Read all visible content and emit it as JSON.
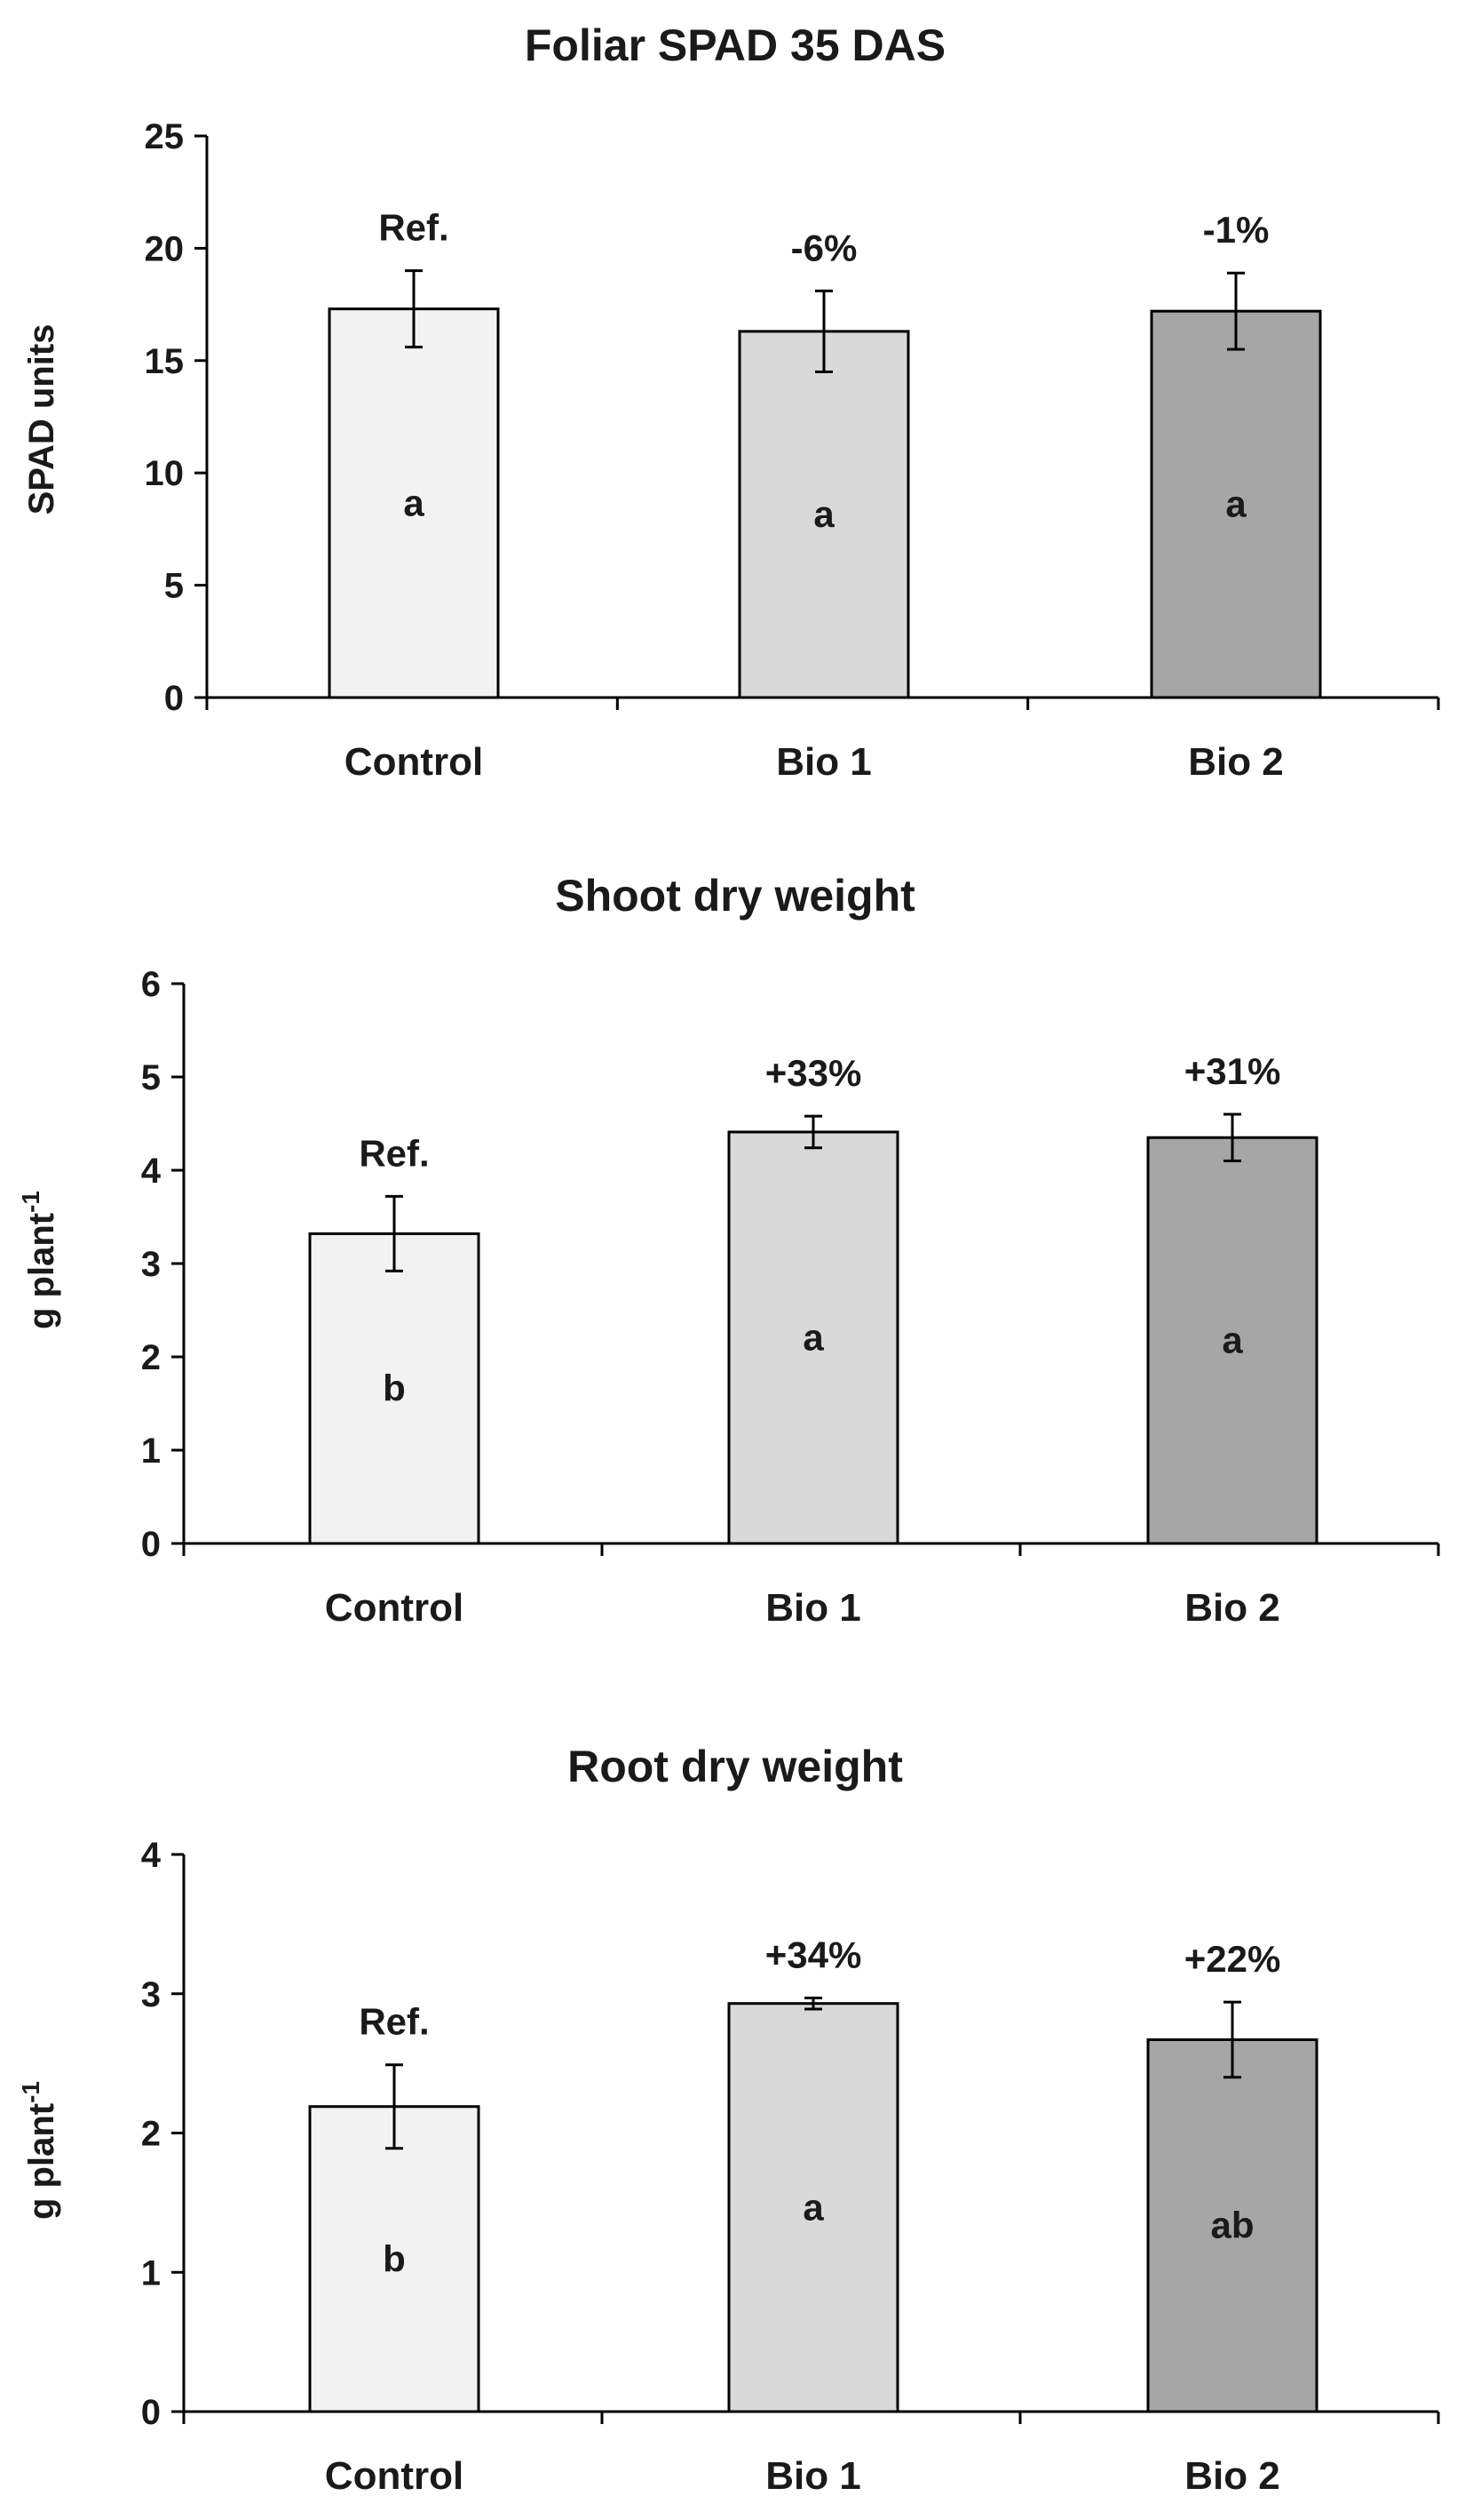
{
  "chart_data": [
    {
      "type": "bar",
      "title": "Foliar SPAD 35 DAS",
      "ylabel": "SPAD units",
      "ylabel_sup": "",
      "ylim": [
        0,
        25
      ],
      "yticks": [
        0,
        5,
        10,
        15,
        20,
        25
      ],
      "categories": [
        "Control",
        "Bio 1",
        "Bio 2"
      ],
      "values": [
        17.3,
        16.3,
        17.2
      ],
      "errors": [
        1.7,
        1.8,
        1.7
      ],
      "annotations": [
        "Ref.",
        "-6%",
        "-1%"
      ],
      "letters": [
        "a",
        "a",
        "a"
      ],
      "bar_colors": [
        "#f2f2f2",
        "#d9d9d9",
        "#a6a6a6"
      ],
      "grid": false,
      "legend": "none"
    },
    {
      "type": "bar",
      "title": "Shoot dry weight",
      "ylabel": "g plant",
      "ylabel_sup": "-1",
      "ylim": [
        0,
        6
      ],
      "yticks": [
        0,
        1,
        2,
        3,
        4,
        5,
        6
      ],
      "categories": [
        "Control",
        "Bio 1",
        "Bio 2"
      ],
      "values": [
        3.32,
        4.41,
        4.35
      ],
      "errors": [
        0.4,
        0.17,
        0.25
      ],
      "annotations": [
        "Ref.",
        "+33%",
        "+31%"
      ],
      "letters": [
        "b",
        "a",
        "a"
      ],
      "bar_colors": [
        "#f2f2f2",
        "#d9d9d9",
        "#a6a6a6"
      ],
      "grid": false,
      "legend": "none"
    },
    {
      "type": "bar",
      "title": "Root dry weight",
      "ylabel": "g plant",
      "ylabel_sup": "-1",
      "ylim": [
        0,
        4
      ],
      "yticks": [
        0,
        1,
        2,
        3,
        4
      ],
      "categories": [
        "Control",
        "Bio 1",
        "Bio 2"
      ],
      "values": [
        2.19,
        2.93,
        2.67
      ],
      "errors": [
        0.3,
        0.04,
        0.27
      ],
      "annotations": [
        "Ref.",
        "+34%",
        "+22%"
      ],
      "letters": [
        "b",
        "a",
        "ab"
      ],
      "bar_colors": [
        "#f2f2f2",
        "#d9d9d9",
        "#a6a6a6"
      ],
      "grid": false,
      "legend": "none"
    }
  ]
}
